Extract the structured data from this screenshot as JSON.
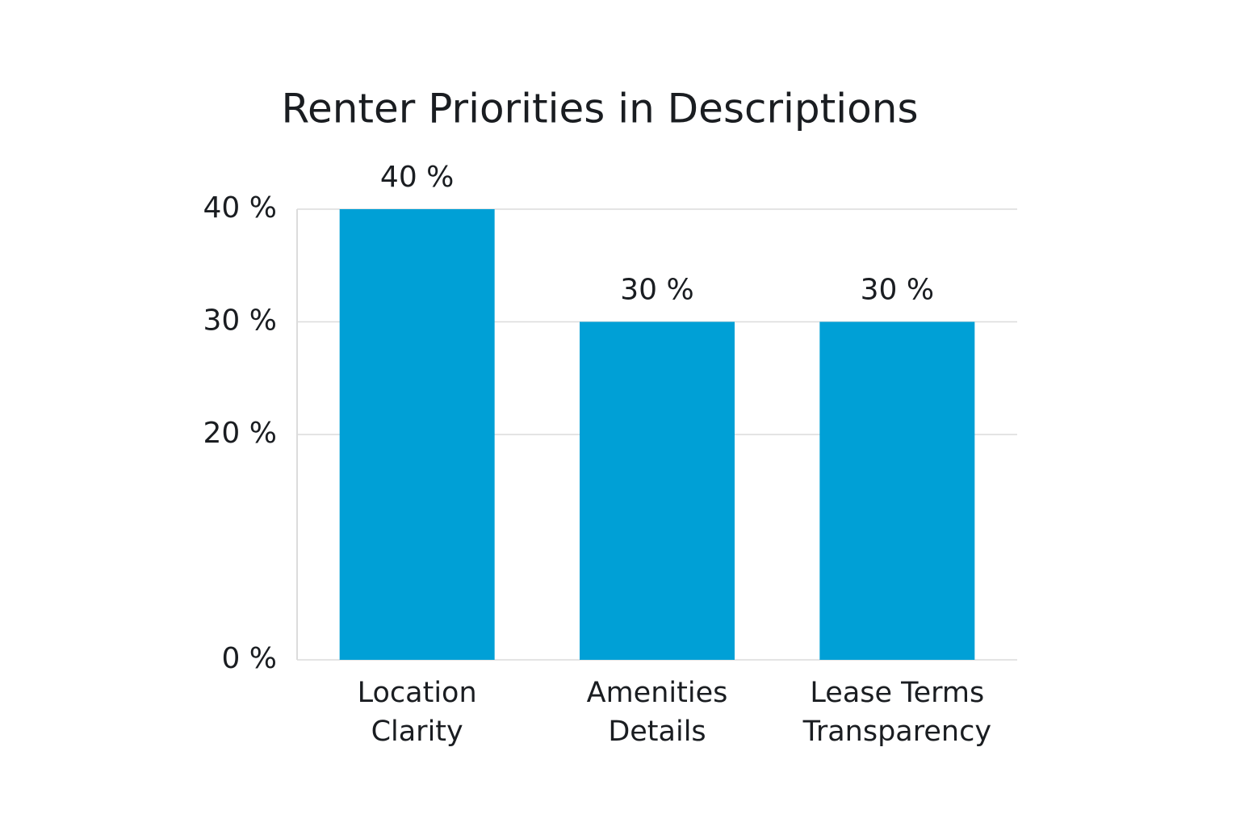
{
  "chart_data": {
    "type": "bar",
    "title": "Renter Priorities in Descriptions",
    "categories": [
      "Location Clarity",
      "Amenities Details",
      "Lease Terms Transparency"
    ],
    "values": [
      40,
      30,
      30
    ],
    "value_labels": [
      "40 %",
      "30 %",
      "30 %"
    ],
    "color": "#00a0d6",
    "ylim": [
      0,
      40
    ],
    "yticks": [
      {
        "value": 0,
        "label": "0 %"
      },
      {
        "value": 20,
        "label": "20 %"
      },
      {
        "value": 30,
        "label": "30 %"
      },
      {
        "value": 40,
        "label": "40 %"
      }
    ],
    "grid": true
  }
}
